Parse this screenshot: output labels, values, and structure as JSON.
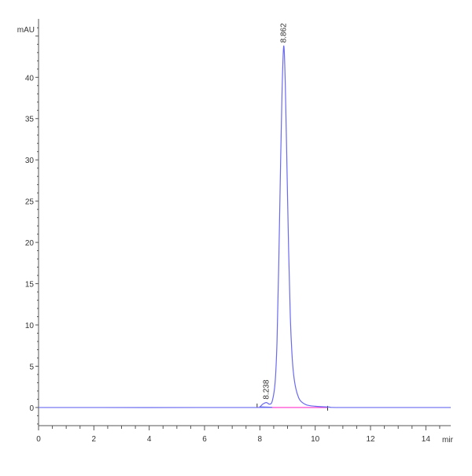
{
  "chart_data": {
    "type": "line",
    "ylabel": "mAU",
    "xlabel": "mir",
    "xlim": [
      0,
      14.9
    ],
    "ylim": [
      -2.2,
      46.7
    ],
    "x_ticks": [
      0,
      2,
      4,
      6,
      8,
      10,
      12,
      14
    ],
    "y_ticks": [
      0,
      5,
      10,
      15,
      20,
      25,
      30,
      35,
      40
    ],
    "grid": false,
    "colors": {
      "signal": "#6a6af0",
      "baseline": "#ff33cc",
      "axis": "#555555"
    },
    "peaks": [
      {
        "label": "8.238",
        "time": 8.238,
        "height": 0.6
      },
      {
        "label": "8.862",
        "time": 8.862,
        "height": 43.8
      }
    ],
    "integration_baseline": {
      "start": 7.9,
      "end": 10.45,
      "value": 0
    },
    "series": [
      {
        "x": [
          0,
          7.8,
          8.0,
          8.1,
          8.238,
          8.35,
          8.45,
          8.55,
          8.62,
          8.68,
          8.74,
          8.8,
          8.862,
          8.92,
          8.98,
          9.04,
          9.1,
          9.16,
          9.22,
          9.3,
          9.4,
          9.5,
          9.7,
          10.0,
          10.5,
          11.0,
          14.9
        ],
        "y": [
          0,
          0,
          0.1,
          0.4,
          0.6,
          0.4,
          0.8,
          3,
          8,
          17,
          28,
          38,
          43.8,
          39,
          29,
          19,
          11,
          6.5,
          4,
          2.3,
          1.2,
          0.7,
          0.3,
          0.15,
          0.05,
          0,
          0
        ]
      }
    ]
  }
}
